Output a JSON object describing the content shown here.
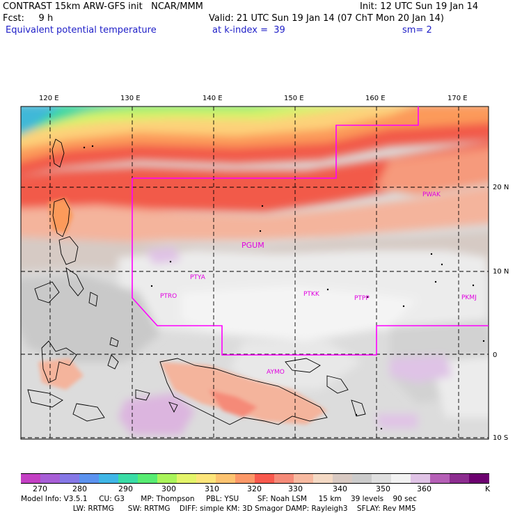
{
  "header": {
    "line1_left": "CONTRAST 15km ARW-GFS init   NCAR/MMM",
    "line1_right": "Init: 12 UTC Sun 19 Jan 14",
    "line2_left": "Fcst:     9 h",
    "line2_right": "Valid: 21 UTC Sun 19 Jan 14 (07 ChT Mon 20 Jan 14)",
    "line3_field": "Equivalent potential temperature",
    "line3_level": "at k-index =  39",
    "line3_smooth": "sm= 2"
  },
  "map": {
    "lon_labels": [
      "120 E",
      "130 E",
      "140 E",
      "150 E",
      "160 E",
      "170 E"
    ],
    "lat_labels": [
      "20 N",
      "10 N",
      "0",
      "10 S"
    ],
    "stations": [
      "PWAK",
      "PGUM",
      "PTYA",
      "PTRO",
      "PTKK",
      "PTPP",
      "PKMJ",
      "AYMO"
    ],
    "colors": {
      "region_boundary": "#ff00ff",
      "grid": "#000000"
    }
  },
  "colorbar": {
    "unit": "K",
    "labels": [
      "270",
      "280",
      "290",
      "300",
      "310",
      "320",
      "330",
      "340",
      "350",
      "360"
    ],
    "colors": [
      "#c33fc3",
      "#a75ed6",
      "#8577e6",
      "#5b92ef",
      "#3fb6e6",
      "#39dca5",
      "#57ec72",
      "#a9f45a",
      "#e4f46a",
      "#fde57a",
      "#fdc370",
      "#fc9868",
      "#f8594d",
      "#f58a78",
      "#f7b9a0",
      "#f4d9c4",
      "#d8c9c2",
      "#cbcbcb",
      "#dfdfdf",
      "#f2f2f2",
      "#e0c3e6",
      "#b55fb6",
      "#8c2c8f",
      "#6c006f"
    ]
  },
  "model_info": {
    "line1": "Model Info: V3.5.1     CU: G3       MP: Thompson     PBL: YSU        SF: Noah LSM     15 km    39 levels    90 sec",
    "line2": "                             LW: RRTMG      SW: RRTMG    DIFF: simple KM: 3D Smagor DAMP: Rayleigh3    SFLAY: Rev MM5"
  }
}
